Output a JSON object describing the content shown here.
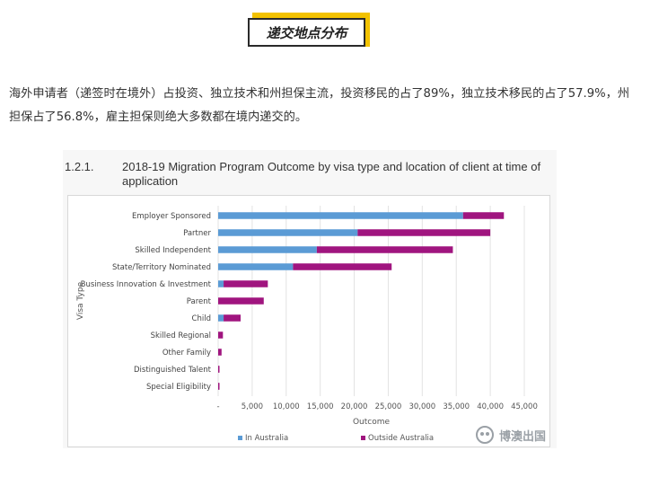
{
  "section": {
    "title": "递交地点分布"
  },
  "intro": {
    "text": "海外申请者（递签时在境外）占投资、独立技术和州担保主流，投资移民的占了89%，独立技术移民的占了57.9%，州担保占了56.8%，雇主担保则绝大多数都在境内递交的。"
  },
  "watermark": {
    "text": "博澳出国"
  },
  "chart_data": {
    "type": "bar",
    "orientation": "horizontal",
    "stacked": true,
    "figure_number": "1.2.1.",
    "title": "2018-19 Migration Program Outcome by visa type and location of client at time of application",
    "xlabel": "Outcome",
    "ylabel": "Visa Type",
    "xlim": [
      0,
      45000
    ],
    "xticks": [
      "-",
      "5,000",
      "10,000",
      "15,000",
      "20,000",
      "25,000",
      "30,000",
      "35,000",
      "40,000",
      "45,000"
    ],
    "grid": "vertical",
    "legend_position": "bottom",
    "categories": [
      "Employer Sponsored",
      "Partner",
      "Skilled Independent",
      "State/Territory Nominated",
      "Business Innovation & Investment",
      "Parent",
      "Child",
      "Skilled Regional",
      "Other Family",
      "Distinguished Talent",
      "Special Eligibility"
    ],
    "series": [
      {
        "name": "In Australia",
        "color": "#5b9bd5",
        "values": [
          36000,
          20500,
          14500,
          11000,
          800,
          0,
          800,
          0,
          0,
          0,
          0
        ]
      },
      {
        "name": "Outside Australia",
        "color": "#a0157f",
        "values": [
          6000,
          19500,
          20000,
          14500,
          6500,
          6700,
          2500,
          700,
          500,
          150,
          150
        ]
      }
    ]
  }
}
